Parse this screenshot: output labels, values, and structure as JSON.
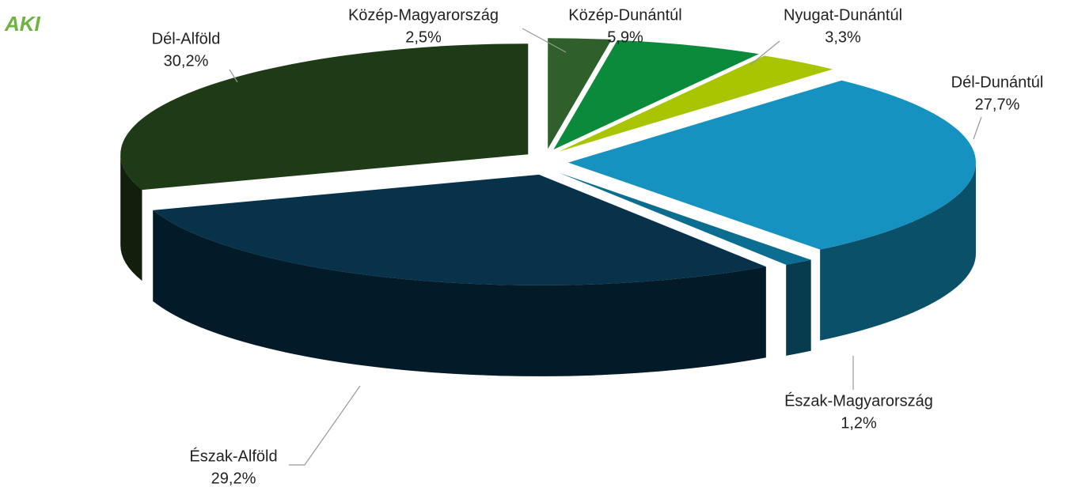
{
  "logo": "AKI",
  "chart_data": {
    "type": "pie",
    "categories": [
      "Közép-Magyarország",
      "Közép-Dunántúl",
      "Nyugat-Dunántúl",
      "Dél-Dunántúl",
      "Észak-Magyarország",
      "Észak-Alföld",
      "Dél-Alföld"
    ],
    "values": [
      2.5,
      5.9,
      3.3,
      27.7,
      1.2,
      29.2,
      30.2
    ],
    "value_labels": [
      "2,5%",
      "5,9%",
      "3,3%",
      "27,7%",
      "1,2%",
      "29,2%",
      "30,2%"
    ],
    "colors": [
      "#2f5f2a",
      "#0a8a3a",
      "#a9c400",
      "#1592c0",
      "#0b6d8f",
      "#07324a",
      "#1f3a17"
    ]
  }
}
